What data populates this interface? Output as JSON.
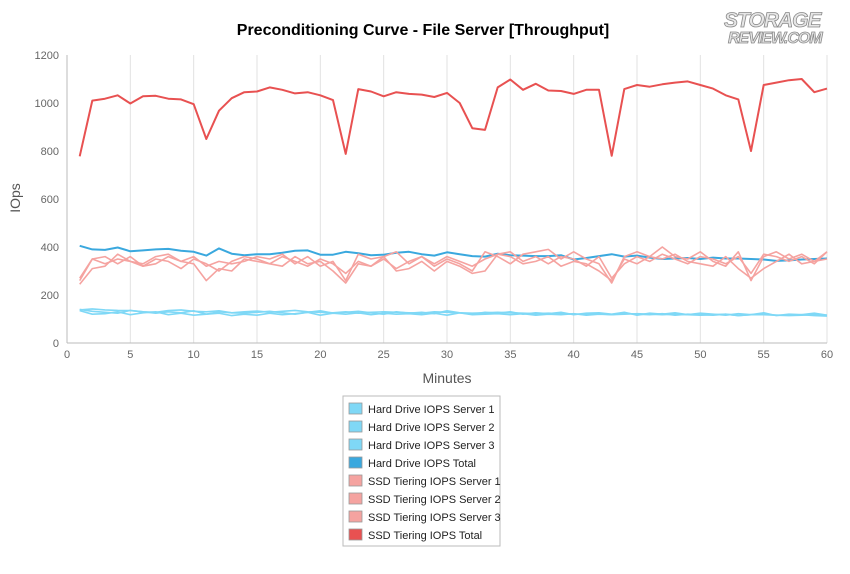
{
  "logo": {
    "line1": "STORAGE",
    "line2": "REVIEW.COM"
  },
  "chart_data": {
    "type": "line",
    "title": "Preconditioning Curve - File Server [Throughput]",
    "xlabel": "Minutes",
    "ylabel": "IOps",
    "xlim": [
      0,
      60
    ],
    "ylim": [
      0,
      1200
    ],
    "x_ticks": [
      0,
      5,
      10,
      15,
      20,
      25,
      30,
      35,
      40,
      45,
      50,
      55,
      60
    ],
    "y_ticks": [
      0,
      200,
      400,
      600,
      800,
      1000,
      1200
    ],
    "grid": "vertical",
    "legend_position": "bottom",
    "x": [
      1,
      2,
      3,
      4,
      5,
      6,
      7,
      8,
      9,
      10,
      11,
      12,
      13,
      14,
      15,
      16,
      17,
      18,
      19,
      20,
      21,
      22,
      23,
      24,
      25,
      26,
      27,
      28,
      29,
      30,
      31,
      32,
      33,
      34,
      35,
      36,
      37,
      38,
      39,
      40,
      41,
      42,
      43,
      44,
      45,
      46,
      47,
      48,
      49,
      50,
      51,
      52,
      53,
      54,
      55,
      56,
      57,
      58,
      59,
      60
    ],
    "series": [
      {
        "name": "Hard Drive IOPS Server 1",
        "color": "#7fd8f6",
        "values": [
          138,
          142,
          138,
          136,
          135,
          130,
          128,
          135,
          138,
          132,
          130,
          134,
          126,
          130,
          133,
          128,
          132,
          136,
          130,
          128,
          126,
          130,
          124,
          128,
          130,
          128,
          126,
          124,
          130,
          128,
          126,
          124,
          126,
          128,
          126,
          124,
          122,
          124,
          122,
          120,
          120,
          122,
          118,
          120,
          122,
          120,
          118,
          120,
          118,
          116,
          118,
          120,
          114,
          118,
          120,
          116,
          116,
          118,
          114,
          112
        ]
      },
      {
        "name": "Hard Drive IOPS Server 2",
        "color": "#7fd8f6",
        "values": [
          135,
          120,
          122,
          130,
          118,
          126,
          130,
          118,
          124,
          116,
          120,
          124,
          114,
          120,
          116,
          124,
          118,
          122,
          128,
          116,
          124,
          120,
          126,
          118,
          124,
          120,
          122,
          118,
          124,
          116,
          126,
          118,
          120,
          122,
          118,
          122,
          116,
          120,
          118,
          122,
          116,
          120,
          118,
          124,
          120,
          118,
          122,
          116,
          120,
          118,
          116,
          120,
          114,
          118,
          118,
          116,
          114,
          116,
          118,
          116
        ]
      },
      {
        "name": "Hard Drive IOPS Server 3",
        "color": "#7fd8f6",
        "values": [
          140,
          132,
          128,
          124,
          136,
          130,
          124,
          130,
          126,
          134,
          120,
          130,
          126,
          124,
          128,
          132,
          126,
          120,
          128,
          134,
          124,
          128,
          132,
          126,
          120,
          130,
          124,
          128,
          122,
          134,
          126,
          120,
          128,
          124,
          130,
          120,
          126,
          122,
          128,
          118,
          124,
          126,
          120,
          128,
          116,
          124,
          120,
          126,
          118,
          124,
          120,
          116,
          122,
          118,
          126,
          114,
          120,
          118,
          124,
          116
        ]
      },
      {
        "name": "Hard Drive IOPS Total",
        "color": "#3aa8de",
        "values": [
          405,
          390,
          388,
          398,
          382,
          386,
          390,
          392,
          384,
          380,
          364,
          394,
          372,
          366,
          370,
          370,
          376,
          384,
          386,
          368,
          368,
          380,
          374,
          366,
          368,
          376,
          380,
          370,
          364,
          378,
          370,
          362,
          360,
          372,
          366,
          364,
          362,
          362,
          366,
          348,
          354,
          362,
          370,
          360,
          364,
          356,
          350,
          352,
          354,
          350,
          356,
          352,
          352,
          350,
          348,
          342,
          344,
          348,
          350,
          352
        ]
      },
      {
        "name": "SSD Tiering IOPS Server 1",
        "color": "#f5a3a0",
        "values": [
          270,
          350,
          330,
          350,
          340,
          330,
          360,
          370,
          340,
          360,
          320,
          340,
          330,
          340,
          360,
          350,
          370,
          330,
          360,
          320,
          340,
          260,
          370,
          350,
          360,
          380,
          330,
          360,
          320,
          350,
          330,
          300,
          380,
          360,
          330,
          370,
          380,
          390,
          350,
          380,
          350,
          330,
          250,
          360,
          380,
          360,
          400,
          360,
          350,
          380,
          340,
          320,
          380,
          260,
          360,
          380,
          350,
          370,
          340,
          380
        ]
      },
      {
        "name": "SSD Tiering IOPS Server 2",
        "color": "#f5a3a0",
        "values": [
          260,
          350,
          360,
          330,
          360,
          320,
          350,
          340,
          310,
          350,
          330,
          300,
          340,
          360,
          350,
          330,
          360,
          340,
          320,
          350,
          330,
          290,
          340,
          320,
          350,
          310,
          340,
          360,
          330,
          360,
          340,
          320,
          350,
          370,
          380,
          340,
          360,
          330,
          360,
          350,
          320,
          360,
          270,
          330,
          360,
          340,
          370,
          350,
          330,
          360,
          350,
          330,
          360,
          290,
          370,
          360,
          340,
          360,
          330,
          380
        ]
      },
      {
        "name": "SSD Tiering IOPS Server 3",
        "color": "#f5a3a0",
        "values": [
          245,
          310,
          320,
          370,
          340,
          320,
          330,
          360,
          340,
          330,
          260,
          310,
          300,
          350,
          340,
          330,
          320,
          360,
          330,
          340,
          300,
          250,
          330,
          320,
          360,
          300,
          310,
          340,
          300,
          340,
          320,
          290,
          300,
          370,
          360,
          330,
          340,
          360,
          320,
          340,
          330,
          300,
          260,
          350,
          330,
          360,
          350,
          370,
          340,
          330,
          320,
          360,
          310,
          270,
          310,
          340,
          370,
          330,
          340,
          350
        ]
      },
      {
        "name": "SSD Tiering IOPS Total",
        "color": "#e85151",
        "values": [
          778,
          1010,
          1018,
          1032,
          998,
          1028,
          1030,
          1018,
          1015,
          995,
          850,
          968,
          1020,
          1045,
          1048,
          1065,
          1055,
          1040,
          1045,
          1032,
          1012,
          788,
          1058,
          1048,
          1028,
          1045,
          1038,
          1035,
          1025,
          1042,
          1000,
          895,
          888,
          1065,
          1098,
          1055,
          1080,
          1052,
          1050,
          1038,
          1055,
          1055,
          780,
          1058,
          1075,
          1068,
          1078,
          1085,
          1090,
          1075,
          1060,
          1032,
          1015,
          800,
          1075,
          1085,
          1095,
          1100,
          1045,
          1060
        ]
      }
    ]
  }
}
